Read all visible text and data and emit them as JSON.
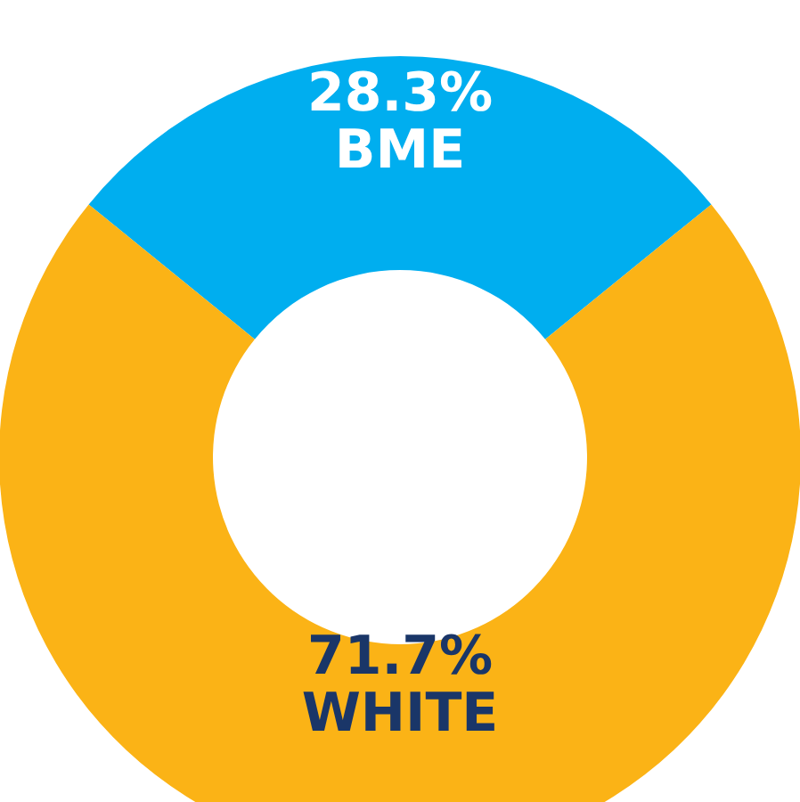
{
  "chart_data": {
    "type": "donut",
    "categories": [
      "BME",
      "WHITE"
    ],
    "values": [
      28.3,
      71.7
    ],
    "value_labels": [
      "28.3%",
      "71.7%"
    ],
    "colors": [
      "#00aeef",
      "#fbb316"
    ],
    "legend": false
  }
}
